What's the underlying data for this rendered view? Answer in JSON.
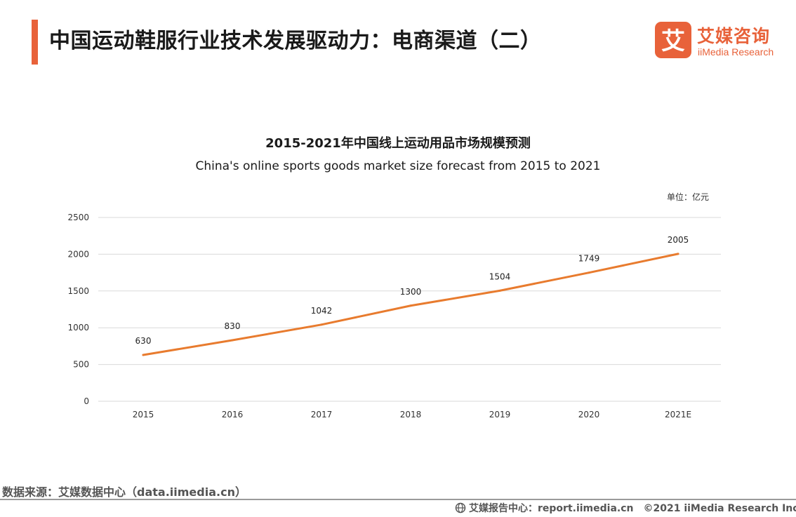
{
  "page": {
    "title": "中国运动鞋服行业技术发展驱动力：电商渠道（二）",
    "accent_color": "#e8623a"
  },
  "logo": {
    "mark_char": "艾",
    "cn": "艾媒咨询",
    "en": "iiMedia Research"
  },
  "unit_label": "单位：亿元",
  "source": "数据来源：艾媒数据中心（data.iimedia.cn）",
  "footer": {
    "icon": "globe-icon",
    "text": "艾媒报告中心：report.iimedia.cn　©2021  iiMedia Research  Inc"
  },
  "chart_data": {
    "type": "line",
    "title": "2015-2021年中国线上运动用品市场规模预测",
    "subtitle": "China's online sports goods market size forecast from 2015 to 2021",
    "categories": [
      "2015",
      "2016",
      "2017",
      "2018",
      "2019",
      "2020",
      "2021E"
    ],
    "series": [
      {
        "values": [
          630,
          830,
          1042,
          1300,
          1504,
          1749,
          2005
        ],
        "color": "#e87b2e"
      }
    ],
    "ylim": [
      0,
      2500
    ],
    "yticks": [
      0,
      500,
      1000,
      1500,
      2000,
      2500
    ],
    "grid": true,
    "data_labels": true
  }
}
